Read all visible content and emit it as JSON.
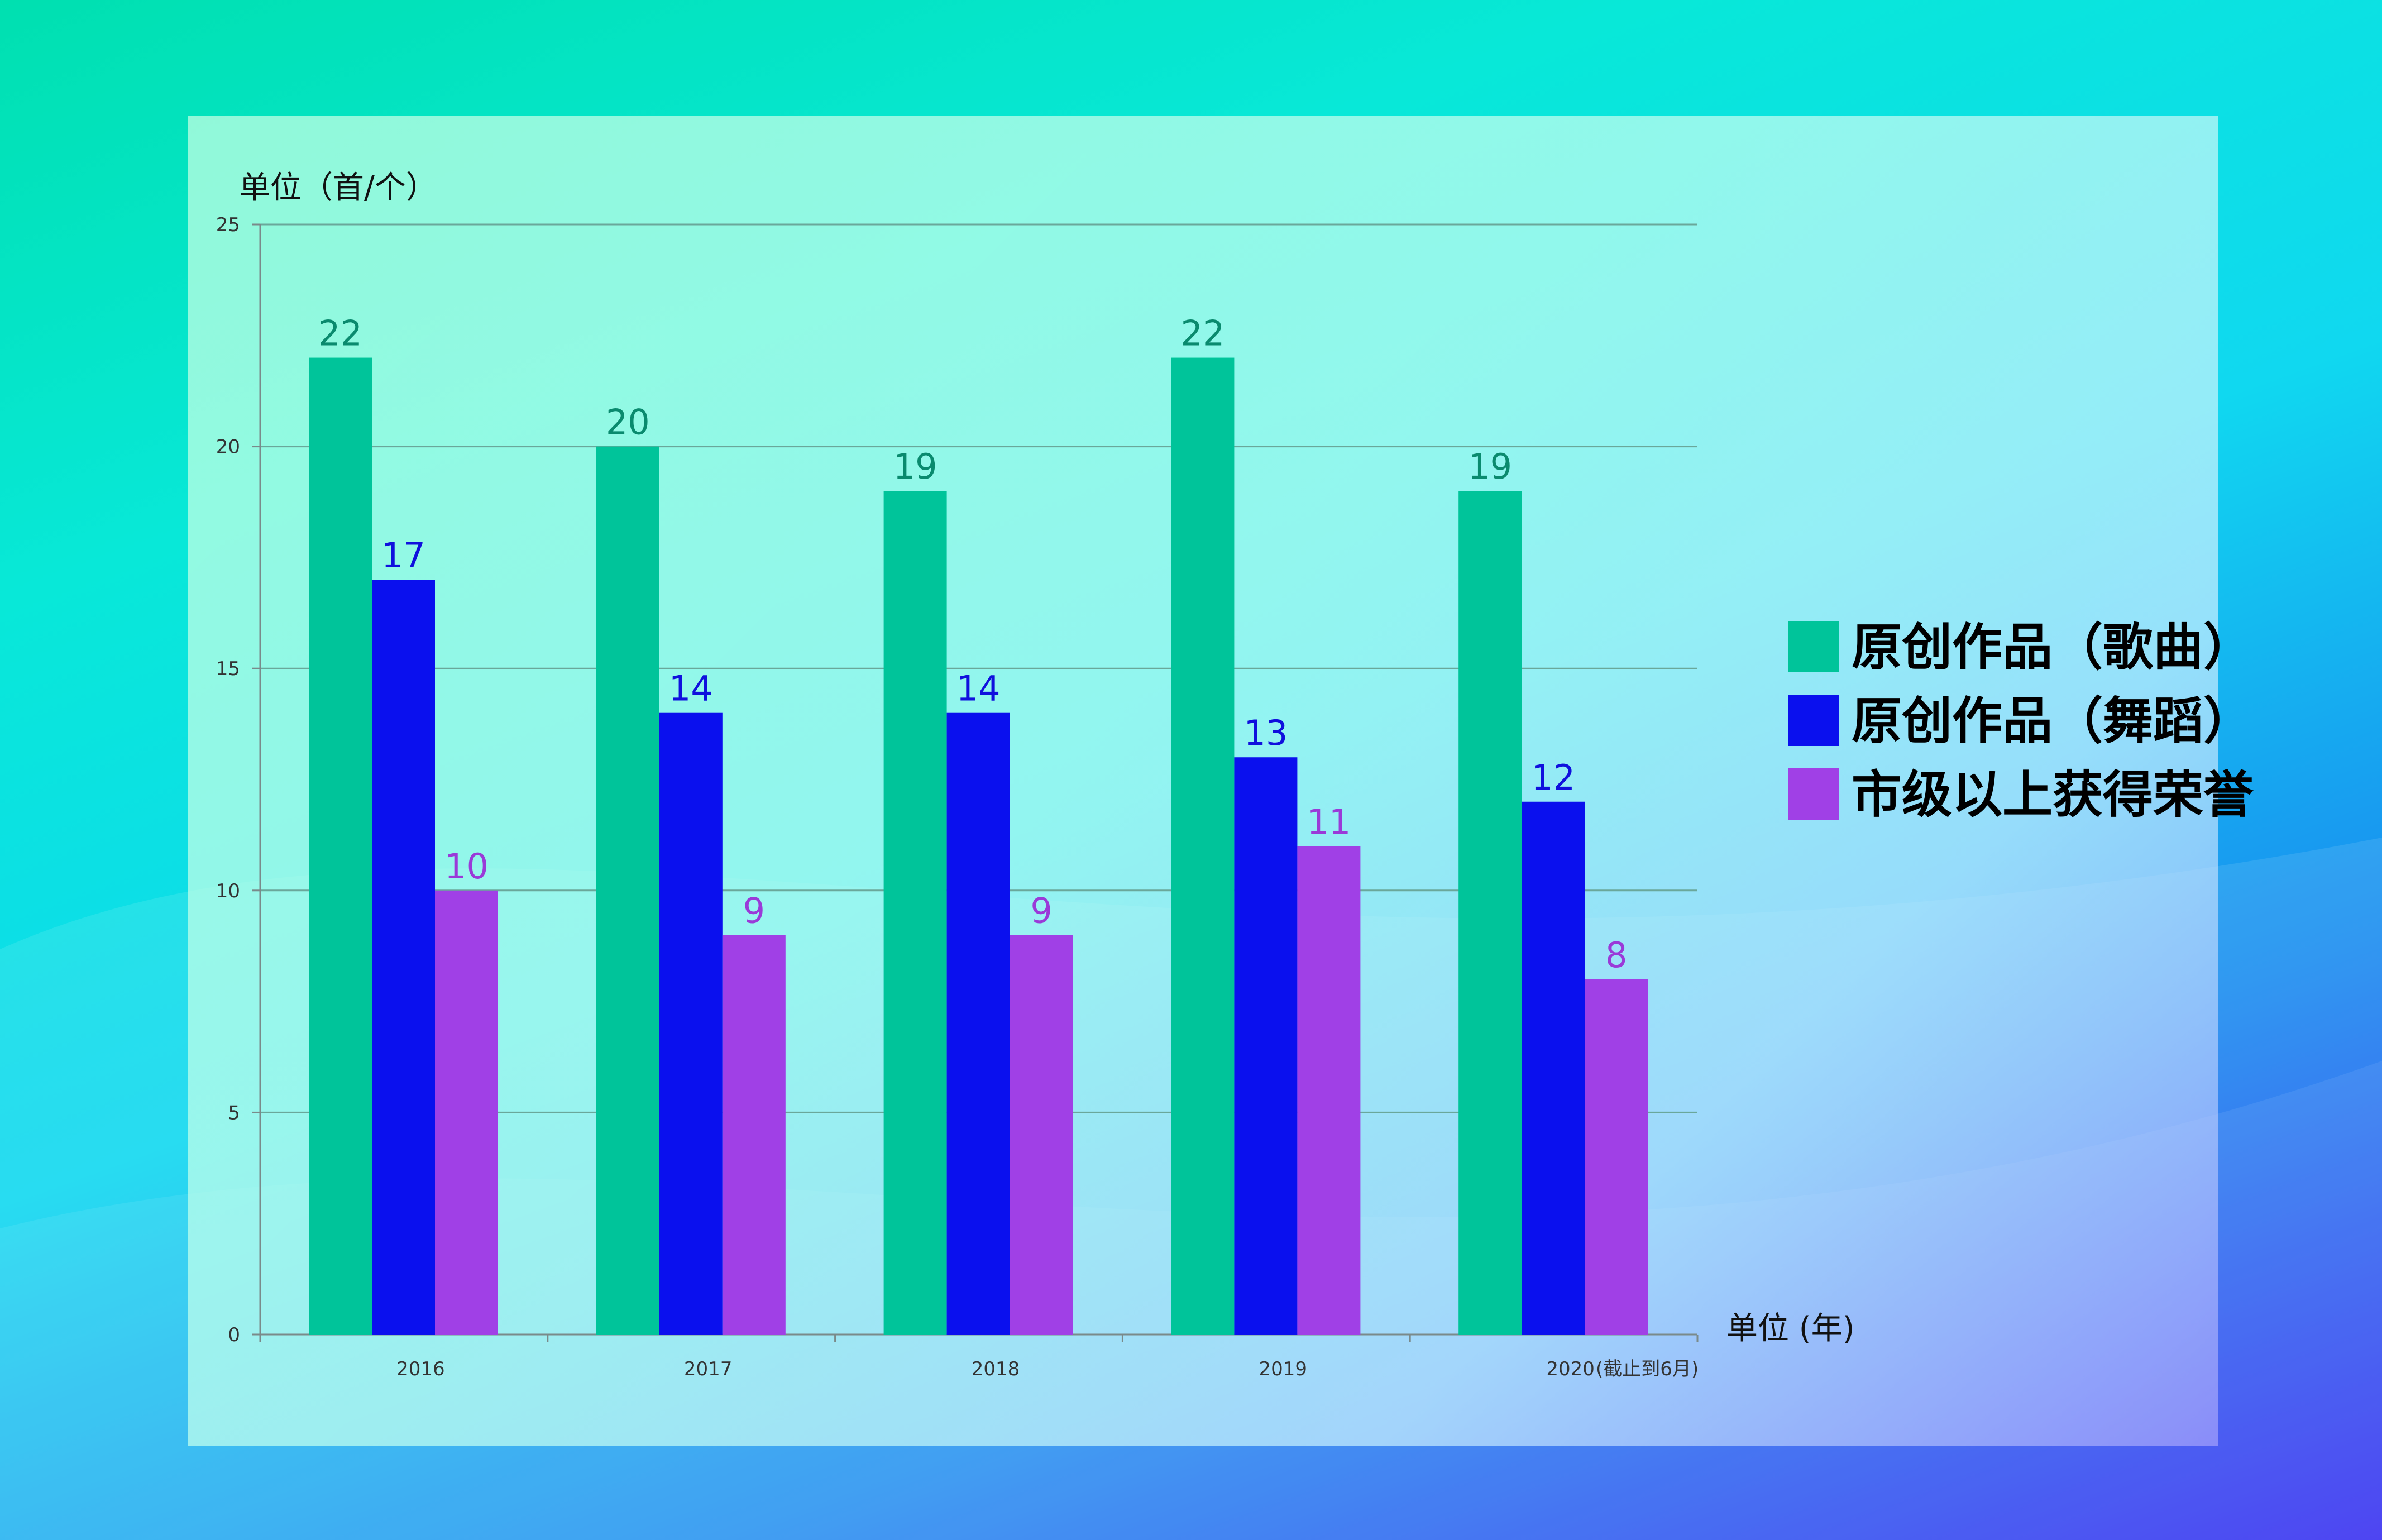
{
  "chart_data": {
    "type": "bar",
    "ylabel": "单位（首/个）",
    "xlabel": "单位 (年)",
    "categories": [
      "2016",
      "2017",
      "2018",
      "2019",
      "2020"
    ],
    "category_note": "(截止到6月)",
    "ylim": [
      0,
      25
    ],
    "yticks": [
      "0",
      "5",
      "10",
      "15",
      "20",
      "25"
    ],
    "grid": true,
    "legend_position": "right",
    "series": [
      {
        "name": "原创作品（歌曲）",
        "color": "#00c49a",
        "label_color": "#0a8a6e",
        "values": [
          22,
          20,
          19,
          22,
          19
        ]
      },
      {
        "name": "原创作品（舞蹈）",
        "color": "#0a10ee",
        "label_color": "#1010dd",
        "values": [
          17,
          14,
          14,
          13,
          12
        ]
      },
      {
        "name": "市级以上获得荣誉",
        "color": "#a040e6",
        "label_color": "#9a3ad8",
        "values": [
          10,
          9,
          9,
          11,
          8
        ]
      }
    ]
  }
}
